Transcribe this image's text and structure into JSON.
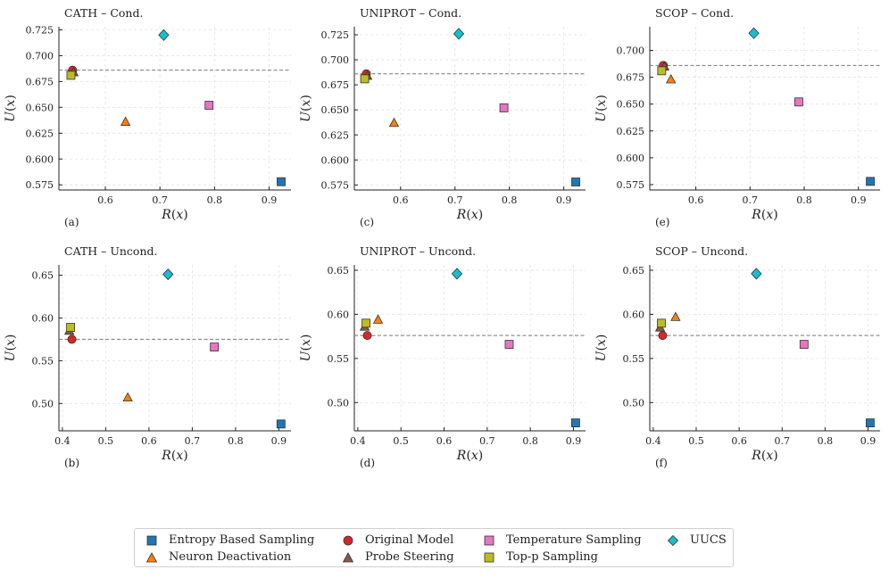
{
  "methods": [
    {
      "name": "Entropy Based Sampling",
      "marker": "square",
      "color": "#1f77b4"
    },
    {
      "name": "Neuron Deactivation",
      "marker": "triangle",
      "color": "#ff7f0e"
    },
    {
      "name": "Original Model",
      "marker": "circle",
      "color": "#d62728"
    },
    {
      "name": "Probe Steering",
      "marker": "triangle",
      "color": "#8c564b"
    },
    {
      "name": "Temperature Sampling",
      "marker": "square",
      "color": "#e377c2"
    },
    {
      "name": "Top-p Sampling",
      "marker": "square",
      "color": "#bcbd22"
    },
    {
      "name": "UUCS",
      "marker": "diamond",
      "color": "#17becf"
    }
  ],
  "chart_data": [
    {
      "type": "scatter",
      "title": "CATH – Cond.",
      "panel_label": "(a)",
      "xlabel": "R(x)",
      "ylabel": "U(x)",
      "xlim": [
        0.515,
        0.94
      ],
      "ylim": [
        0.57,
        0.728
      ],
      "xticks": [
        "0.6",
        "0.7",
        "0.8",
        "0.9"
      ],
      "xtick_values": [
        0.6,
        0.7,
        0.8,
        0.9
      ],
      "yticks": [
        "0.575",
        "0.600",
        "0.625",
        "0.650",
        "0.675",
        "0.700",
        "0.725"
      ],
      "ytick_values": [
        0.575,
        0.6,
        0.625,
        0.65,
        0.675,
        0.7,
        0.725
      ],
      "baseline": 0.686,
      "points": [
        {
          "method": "Entropy Based Sampling",
          "x": 0.922,
          "y": 0.578
        },
        {
          "method": "Neuron Deactivation",
          "x": 0.637,
          "y": 0.636
        },
        {
          "method": "Original Model",
          "x": 0.54,
          "y": 0.686
        },
        {
          "method": "Probe Steering",
          "x": 0.542,
          "y": 0.684
        },
        {
          "method": "Temperature Sampling",
          "x": 0.79,
          "y": 0.652
        },
        {
          "method": "Top-p Sampling",
          "x": 0.537,
          "y": 0.681
        },
        {
          "method": "UUCS",
          "x": 0.707,
          "y": 0.72
        }
      ]
    },
    {
      "type": "scatter",
      "title": "UNIPROT – Cond.",
      "panel_label": "(c)",
      "xlabel": "R(x)",
      "ylabel": "U(x)",
      "xlim": [
        0.515,
        0.94
      ],
      "ylim": [
        0.57,
        0.733
      ],
      "xticks": [
        "0.6",
        "0.7",
        "0.8",
        "0.9"
      ],
      "xtick_values": [
        0.6,
        0.7,
        0.8,
        0.9
      ],
      "yticks": [
        "0.575",
        "0.600",
        "0.625",
        "0.650",
        "0.675",
        "0.700",
        "0.725"
      ],
      "ytick_values": [
        0.575,
        0.6,
        0.625,
        0.65,
        0.675,
        0.7,
        0.725
      ],
      "baseline": 0.686,
      "points": [
        {
          "method": "Entropy Based Sampling",
          "x": 0.922,
          "y": 0.578
        },
        {
          "method": "Neuron Deactivation",
          "x": 0.588,
          "y": 0.637
        },
        {
          "method": "Original Model",
          "x": 0.537,
          "y": 0.686
        },
        {
          "method": "Probe Steering",
          "x": 0.539,
          "y": 0.684
        },
        {
          "method": "Temperature Sampling",
          "x": 0.79,
          "y": 0.652
        },
        {
          "method": "Top-p Sampling",
          "x": 0.534,
          "y": 0.681
        },
        {
          "method": "UUCS",
          "x": 0.707,
          "y": 0.726
        }
      ]
    },
    {
      "type": "scatter",
      "title": "SCOP – Cond.",
      "panel_label": "(e)",
      "xlabel": "R(x)",
      "ylabel": "U(x)",
      "xlim": [
        0.515,
        0.94
      ],
      "ylim": [
        0.57,
        0.722
      ],
      "xticks": [
        "0.6",
        "0.7",
        "0.8",
        "0.9"
      ],
      "xtick_values": [
        0.6,
        0.7,
        0.8,
        0.9
      ],
      "yticks": [
        "0.575",
        "0.600",
        "0.625",
        "0.650",
        "0.675",
        "0.700"
      ],
      "ytick_values": [
        0.575,
        0.6,
        0.625,
        0.65,
        0.675,
        0.7
      ],
      "baseline": 0.686,
      "points": [
        {
          "method": "Entropy Based Sampling",
          "x": 0.922,
          "y": 0.578
        },
        {
          "method": "Neuron Deactivation",
          "x": 0.554,
          "y": 0.673
        },
        {
          "method": "Original Model",
          "x": 0.54,
          "y": 0.686
        },
        {
          "method": "Probe Steering",
          "x": 0.542,
          "y": 0.685
        },
        {
          "method": "Temperature Sampling",
          "x": 0.79,
          "y": 0.652
        },
        {
          "method": "Top-p Sampling",
          "x": 0.537,
          "y": 0.681
        },
        {
          "method": "UUCS",
          "x": 0.707,
          "y": 0.716
        }
      ]
    },
    {
      "type": "scatter",
      "title": "CATH – Uncond.",
      "panel_label": "(b)",
      "xlabel": "R(x)",
      "ylabel": "U(x)",
      "xlim": [
        0.392,
        0.928
      ],
      "ylim": [
        0.468,
        0.662
      ],
      "xticks": [
        "0.4",
        "0.5",
        "0.6",
        "0.7",
        "0.8",
        "0.9"
      ],
      "xtick_values": [
        0.4,
        0.5,
        0.6,
        0.7,
        0.8,
        0.9
      ],
      "yticks": [
        "0.50",
        "0.55",
        "0.60",
        "0.65"
      ],
      "ytick_values": [
        0.5,
        0.55,
        0.6,
        0.65
      ],
      "baseline": 0.575,
      "points": [
        {
          "method": "Entropy Based Sampling",
          "x": 0.905,
          "y": 0.476
        },
        {
          "method": "Neuron Deactivation",
          "x": 0.551,
          "y": 0.507
        },
        {
          "method": "Original Model",
          "x": 0.422,
          "y": 0.575
        },
        {
          "method": "Probe Steering",
          "x": 0.416,
          "y": 0.585
        },
        {
          "method": "Temperature Sampling",
          "x": 0.751,
          "y": 0.566
        },
        {
          "method": "Top-p Sampling",
          "x": 0.419,
          "y": 0.589
        },
        {
          "method": "UUCS",
          "x": 0.644,
          "y": 0.651
        }
      ]
    },
    {
      "type": "scatter",
      "title": "UNIPROT – Uncond.",
      "panel_label": "(d)",
      "xlabel": "R(x)",
      "ylabel": "U(x)",
      "xlim": [
        0.392,
        0.928
      ],
      "ylim": [
        0.468,
        0.656
      ],
      "xticks": [
        "0.4",
        "0.5",
        "0.6",
        "0.7",
        "0.8",
        "0.9"
      ],
      "xtick_values": [
        0.4,
        0.5,
        0.6,
        0.7,
        0.8,
        0.9
      ],
      "yticks": [
        "0.50",
        "0.55",
        "0.60",
        "0.65"
      ],
      "ytick_values": [
        0.5,
        0.55,
        0.6,
        0.65
      ],
      "baseline": 0.576,
      "points": [
        {
          "method": "Entropy Based Sampling",
          "x": 0.905,
          "y": 0.477
        },
        {
          "method": "Neuron Deactivation",
          "x": 0.447,
          "y": 0.594
        },
        {
          "method": "Original Model",
          "x": 0.422,
          "y": 0.576
        },
        {
          "method": "Probe Steering",
          "x": 0.416,
          "y": 0.586
        },
        {
          "method": "Temperature Sampling",
          "x": 0.751,
          "y": 0.566
        },
        {
          "method": "Top-p Sampling",
          "x": 0.419,
          "y": 0.59
        },
        {
          "method": "UUCS",
          "x": 0.63,
          "y": 0.646
        }
      ]
    },
    {
      "type": "scatter",
      "title": "SCOP – Uncond.",
      "panel_label": "(f)",
      "xlabel": "R(x)",
      "ylabel": "U(x)",
      "xlim": [
        0.392,
        0.928
      ],
      "ylim": [
        0.468,
        0.656
      ],
      "xticks": [
        "0.4",
        "0.5",
        "0.6",
        "0.7",
        "0.8",
        "0.9"
      ],
      "xtick_values": [
        0.4,
        0.5,
        0.6,
        0.7,
        0.8,
        0.9
      ],
      "yticks": [
        "0.50",
        "0.55",
        "0.60",
        "0.65"
      ],
      "ytick_values": [
        0.5,
        0.55,
        0.6,
        0.65
      ],
      "baseline": 0.576,
      "points": [
        {
          "method": "Entropy Based Sampling",
          "x": 0.905,
          "y": 0.477
        },
        {
          "method": "Neuron Deactivation",
          "x": 0.452,
          "y": 0.597
        },
        {
          "method": "Original Model",
          "x": 0.422,
          "y": 0.576
        },
        {
          "method": "Probe Steering",
          "x": 0.416,
          "y": 0.585
        },
        {
          "method": "Temperature Sampling",
          "x": 0.751,
          "y": 0.566
        },
        {
          "method": "Top-p Sampling",
          "x": 0.419,
          "y": 0.59
        },
        {
          "method": "UUCS",
          "x": 0.64,
          "y": 0.646
        }
      ]
    }
  ]
}
